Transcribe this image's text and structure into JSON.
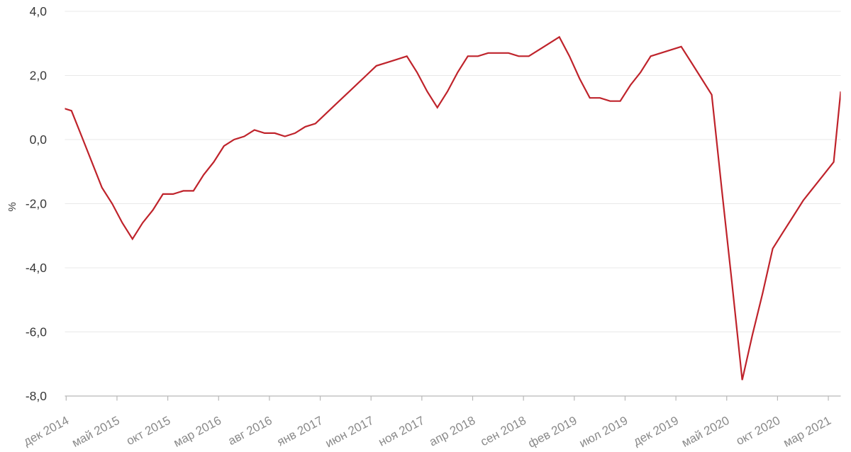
{
  "chart_data": {
    "type": "line",
    "title": "",
    "xlabel": "",
    "ylabel": "%",
    "x_axis_unit": "month",
    "months": [
      "дек 2014",
      "янв 2015",
      "фев 2015",
      "мар 2015",
      "апр 2015",
      "май 2015",
      "июн 2015",
      "июл 2015",
      "авг 2015",
      "сен 2015",
      "окт 2015",
      "ноя 2015",
      "дек 2015",
      "янв 2016",
      "фев 2016",
      "мар 2016",
      "апр 2016",
      "май 2016",
      "июн 2016",
      "июл 2016",
      "авг 2016",
      "сен 2016",
      "окт 2016",
      "ноя 2016",
      "дек 2016",
      "янв 2017",
      "фев 2017",
      "мар 2017",
      "апр 2017",
      "май 2017",
      "июн 2017",
      "июл 2017",
      "авг 2017",
      "сен 2017",
      "окт 2017",
      "ноя 2017",
      "дек 2017",
      "янв 2018",
      "фев 2018",
      "мар 2018",
      "апр 2018",
      "май 2018",
      "июн 2018",
      "июл 2018",
      "авг 2018",
      "сен 2018",
      "окт 2018",
      "ноя 2018",
      "дек 2018",
      "янв 2019",
      "фев 2019",
      "мар 2019",
      "апр 2019",
      "май 2019",
      "июн 2019",
      "июл 2019",
      "авг 2019",
      "сен 2019",
      "окт 2019",
      "ноя 2019",
      "дек 2019",
      "янв 2020",
      "фев 2020",
      "мар 2020",
      "апр 2020",
      "май 2020",
      "июн 2020",
      "июл 2020",
      "авг 2020",
      "сен 2020",
      "окт 2020",
      "ноя 2020",
      "дек 2020",
      "янв 2021",
      "фев 2021",
      "мар 2021",
      "апр 2021",
      "май 2021"
    ],
    "values": [
      1.0,
      0.9,
      0.1,
      -0.7,
      -1.5,
      -2.0,
      -2.6,
      -3.1,
      -2.6,
      -2.2,
      -1.7,
      -1.7,
      -1.6,
      -1.6,
      -1.1,
      -0.7,
      -0.2,
      0.0,
      0.1,
      0.3,
      0.2,
      0.2,
      0.1,
      0.2,
      0.4,
      0.5,
      0.8,
      1.1,
      1.4,
      1.7,
      2.0,
      2.3,
      2.4,
      2.5,
      2.6,
      2.1,
      1.5,
      1.0,
      1.5,
      2.1,
      2.6,
      2.6,
      2.7,
      2.7,
      2.7,
      2.6,
      2.6,
      2.8,
      3.0,
      3.2,
      2.6,
      1.9,
      1.3,
      1.3,
      1.2,
      1.2,
      1.7,
      2.1,
      2.6,
      2.7,
      2.8,
      2.9,
      2.4,
      1.9,
      1.4,
      -1.6,
      -4.5,
      -7.5,
      -6.1,
      -4.8,
      -3.4,
      -2.9,
      -2.4,
      -1.9,
      -1.5,
      -1.1,
      -0.7,
      1.5
    ],
    "x_tick_labels": [
      "дек 2014",
      "май 2015",
      "окт 2015",
      "мар 2016",
      "авг 2016",
      "янв 2017",
      "июн 2017",
      "ноя 2017",
      "апр 2018",
      "сен 2018",
      "фев 2019",
      "июл 2019",
      "дек 2019",
      "май 2020",
      "окт 2020",
      "мар 2021"
    ],
    "x_tick_every": 5,
    "y_tick_labels": [
      "4,0",
      "2,0",
      "0,0",
      "-2,0",
      "-4,0",
      "-6,0",
      "-8,0"
    ],
    "y_ticks": [
      4,
      2,
      0,
      -2,
      -4,
      -6,
      -8
    ],
    "ylim": [
      -8,
      4
    ],
    "grid": "horizontal",
    "legend": "none",
    "line_color": "#bf232b",
    "colors": {
      "grid": "#e8e8e8",
      "axis": "#b8b8b8",
      "y_label_text": "#383838",
      "x_label_text": "#8a8a8a",
      "background": "#ffffff"
    }
  }
}
